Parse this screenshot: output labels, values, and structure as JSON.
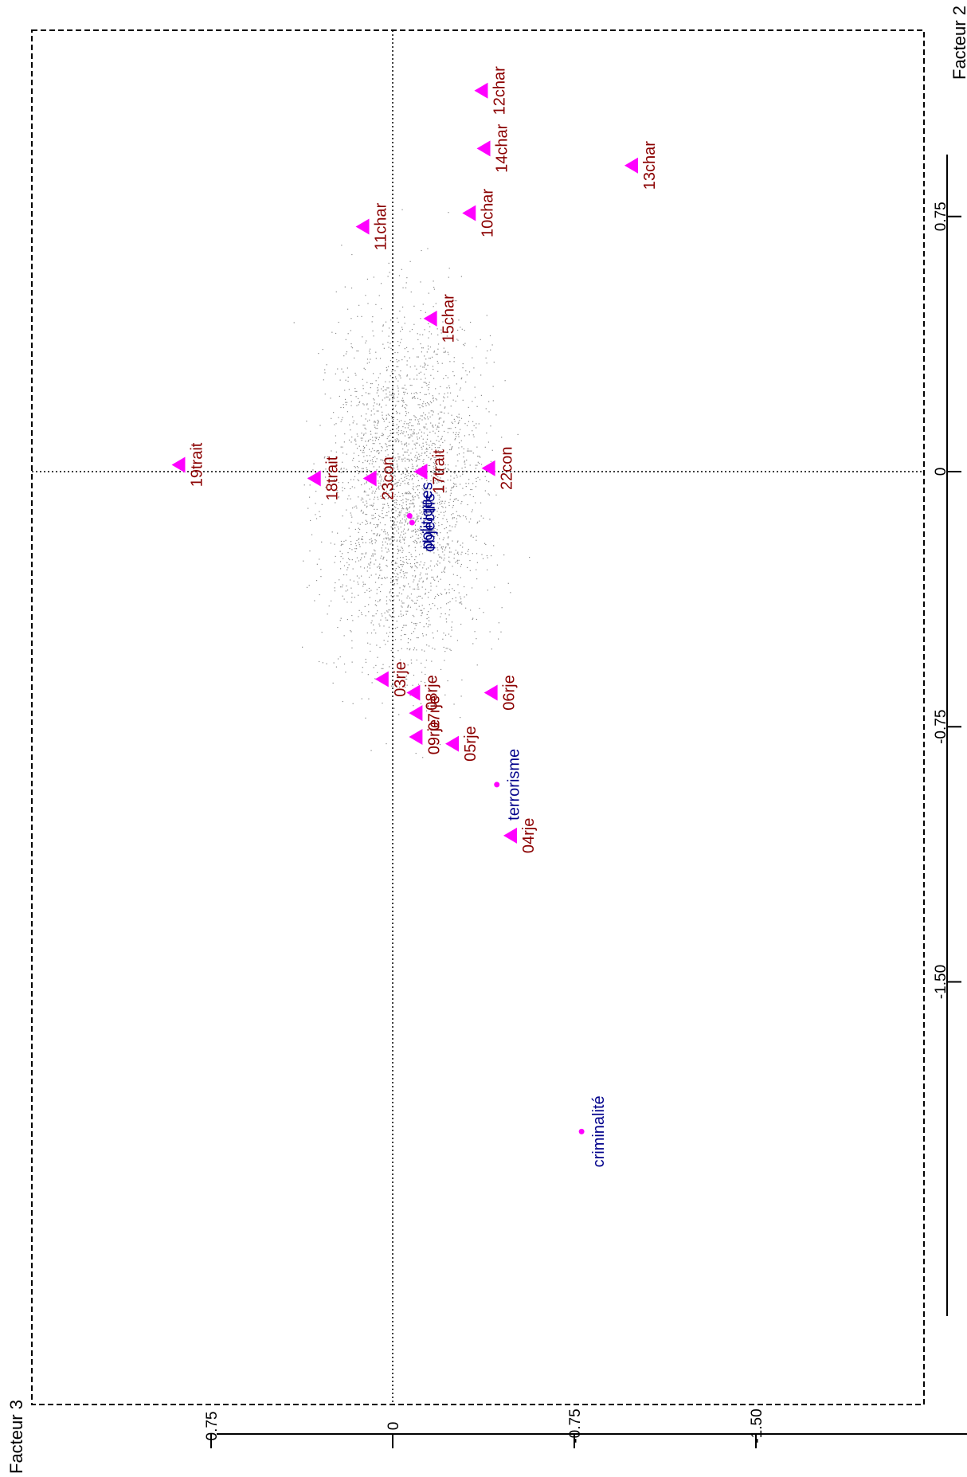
{
  "chart_data": {
    "type": "scatter",
    "rotated_90_degrees": true,
    "title": "",
    "xlabel": "Facteur 2",
    "ylabel": "Facteur 3",
    "xlim": [
      -2.05,
      1.45
    ],
    "ylim": [
      -1.65,
      1.55
    ],
    "grid": false,
    "reference_lines": {
      "x": 0,
      "y": 0
    },
    "x_ticks": [
      0.75,
      0,
      -0.75,
      -1.5
    ],
    "x_tick_labels": [
      "0.75",
      "0",
      "-0.75",
      "-1.50"
    ],
    "y_ticks": [
      0.75,
      0,
      -0.75,
      -1.5
    ],
    "y_tick_labels": [
      "0.75",
      "0",
      "-0.75",
      "-1.50"
    ],
    "series": [
      {
        "kind": "modalities",
        "marker": "triangle",
        "color": "#ff00ff",
        "label_color": "#8b0000",
        "points": [
          {
            "label": "12char",
            "x": 1.12,
            "y": -0.37
          },
          {
            "label": "14char",
            "x": 0.95,
            "y": -0.38
          },
          {
            "label": "13char",
            "x": 0.9,
            "y": -0.99
          },
          {
            "label": "10char",
            "x": 0.76,
            "y": -0.32
          },
          {
            "label": "11char",
            "x": 0.72,
            "y": 0.12
          },
          {
            "label": "15char",
            "x": 0.45,
            "y": -0.16
          },
          {
            "label": "19trait",
            "x": 0.02,
            "y": 0.88
          },
          {
            "label": "18trait",
            "x": -0.02,
            "y": 0.32
          },
          {
            "label": "23con",
            "x": -0.02,
            "y": 0.09
          },
          {
            "label": "17trait",
            "x": 0.0,
            "y": -0.12
          },
          {
            "label": "22con",
            "x": 0.01,
            "y": -0.4
          },
          {
            "label": "03rje",
            "x": -0.61,
            "y": 0.04
          },
          {
            "label": "08rje",
            "x": -0.65,
            "y": -0.09
          },
          {
            "label": "07rje",
            "x": -0.71,
            "y": -0.1
          },
          {
            "label": "06rje",
            "x": -0.65,
            "y": -0.41
          },
          {
            "label": "09rje",
            "x": -0.78,
            "y": -0.1
          },
          {
            "label": "05rje",
            "x": -0.8,
            "y": -0.25
          },
          {
            "label": "04rje",
            "x": -1.07,
            "y": -0.49
          }
        ]
      },
      {
        "kind": "illustrative",
        "marker": "dot",
        "color": "#ff00ff",
        "label_color": "#00008b",
        "points": [
          {
            "label": "politiques",
            "x": -0.13,
            "y": -0.07
          },
          {
            "label": "objectifs",
            "x": -0.15,
            "y": -0.08
          },
          {
            "label": "terrorisme",
            "x": -0.92,
            "y": -0.43
          },
          {
            "label": "criminalité",
            "x": -1.94,
            "y": -0.78
          }
        ]
      }
    ]
  }
}
